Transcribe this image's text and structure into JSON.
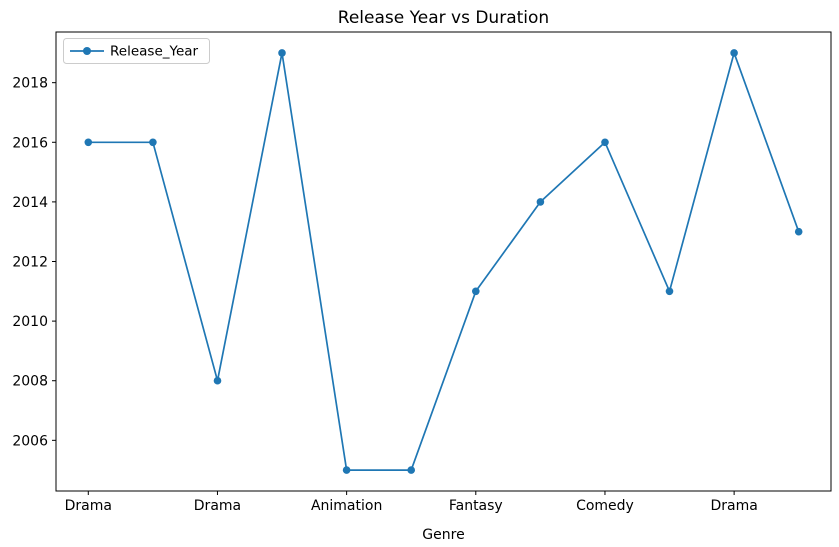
{
  "chart_data": {
    "type": "line",
    "title": "Release Year vs Duration",
    "xlabel": "Genre",
    "ylabel": "",
    "series": [
      {
        "name": "Release_Year",
        "x": [
          0,
          1,
          2,
          3,
          4,
          5,
          6,
          7,
          8,
          9,
          10,
          11
        ],
        "values": [
          2016,
          2016,
          2008,
          2019,
          2005,
          2005,
          2011,
          2014,
          2016,
          2011,
          2019,
          2013
        ],
        "color": "#1f77b4",
        "marker": "circle"
      }
    ],
    "xticks": [
      {
        "index": 0,
        "label": "Drama"
      },
      {
        "index": 2,
        "label": "Drama"
      },
      {
        "index": 4,
        "label": "Animation"
      },
      {
        "index": 6,
        "label": "Fantasy"
      },
      {
        "index": 8,
        "label": "Comedy"
      },
      {
        "index": 10,
        "label": "Drama"
      }
    ],
    "yticks": [
      2006,
      2008,
      2010,
      2012,
      2014,
      2016,
      2018
    ],
    "xlim": [
      -0.5,
      11.5
    ],
    "ylim": [
      2004.3,
      2019.7
    ],
    "grid": false,
    "legend": {
      "position": "upper left",
      "entries": [
        "Release_Year"
      ]
    },
    "colors": {
      "line": "#1f77b4",
      "spine": "#000000",
      "legend_edge": "#cccccc",
      "background": "#ffffff"
    }
  }
}
